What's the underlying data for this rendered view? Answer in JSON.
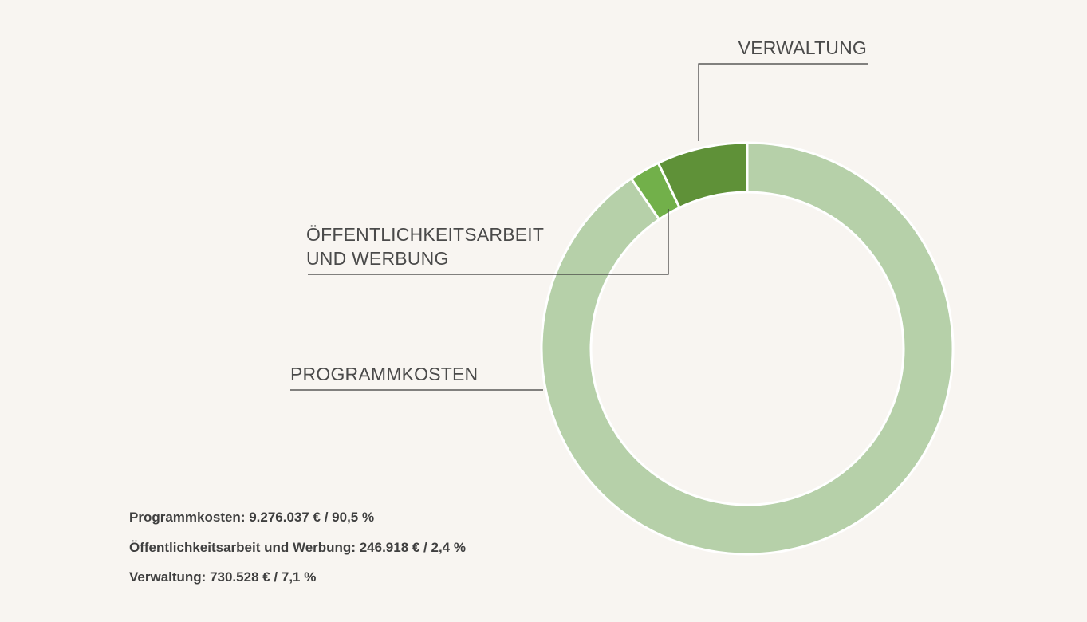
{
  "chart_data": {
    "type": "pie",
    "variant": "donut",
    "categories": [
      "PROGRAMMKOSTEN",
      "ÖFFENTLICHKEITSARBEIT UND WERBUNG",
      "VERWALTUNG"
    ],
    "values": [
      9276037,
      246918,
      730528
    ],
    "percentages": [
      90.5,
      2.4,
      7.1
    ],
    "colors": [
      "#b6d0a9",
      "#72b04a",
      "#5f9138"
    ],
    "callout_labels": {
      "verwaltung": "VERWALTUNG",
      "oeffentlich_line1": "ÖFFENTLICHKEITSARBEIT",
      "oeffentlich_line2": "UND WERBUNG",
      "programm": "PROGRAMMKOSTEN"
    },
    "summary": [
      "Programmkosten: 9.276.037 € / 90,5 %",
      "Öffentlichkeitsarbeit und Werbung: 246.918 € / 2,4 %",
      "Verwaltung: 730.528 € / 7,1 %"
    ],
    "legend": "callouts",
    "grid": false
  }
}
